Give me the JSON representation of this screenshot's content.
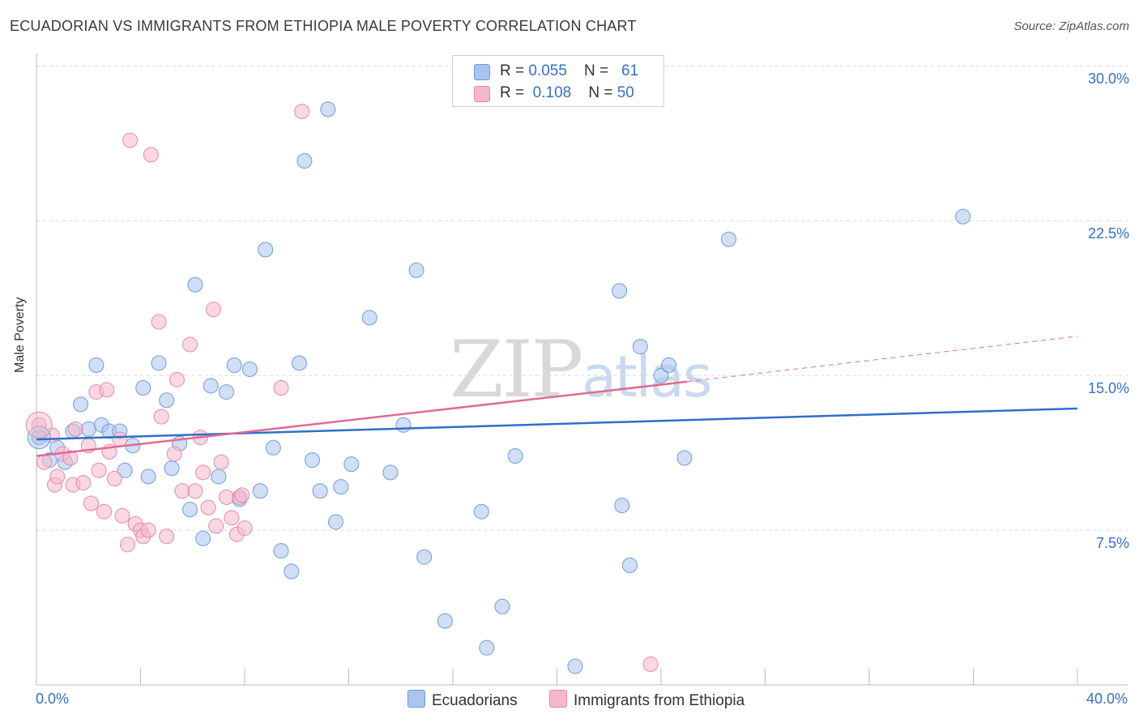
{
  "title": "ECUADORIAN VS IMMIGRANTS FROM ETHIOPIA MALE POVERTY CORRELATION CHART",
  "source": "Source: ZipAtlas.com",
  "watermark": {
    "zip": "ZIP",
    "atlas": "atlas"
  },
  "legend": {
    "rows": [
      {
        "r_label": "R = ",
        "r_value": "0.055",
        "n_label": "N = ",
        "n_value": "61",
        "color": "#a9c5ee"
      },
      {
        "r_label": "R = ",
        "r_value": "0.108",
        "n_label": "N = ",
        "n_value": "50",
        "color": "#f5b8cb"
      }
    ]
  },
  "bottom_legend": [
    {
      "label": "Ecuadorians",
      "color": "#a9c5ee"
    },
    {
      "label": "Immigrants from Ethiopia",
      "color": "#f5b8cb"
    }
  ],
  "chart_data": {
    "type": "scatter",
    "title": "ECUADORIAN VS IMMIGRANTS FROM ETHIOPIA MALE POVERTY CORRELATION CHART",
    "xlabel": "",
    "ylabel": "Male Poverty",
    "xlim": [
      0,
      40
    ],
    "ylim": [
      0,
      31
    ],
    "x_tick_labels": [
      "0.0%",
      "40.0%"
    ],
    "y_ticks": [
      7.5,
      15.0,
      22.5,
      30.0
    ],
    "y_tick_labels": [
      "7.5%",
      "15.0%",
      "22.5%",
      "30.0%"
    ],
    "grid": "horizontal dashed",
    "legend_placement": "top-center",
    "series": [
      {
        "name": "Ecuadorians",
        "color": "#a9c5ee",
        "stroke": "#6f9bd8",
        "trend": {
          "x": [
            0,
            40
          ],
          "y": [
            11.9,
            13.4
          ],
          "color": "#2f6fc9"
        },
        "points": [
          [
            0.1,
            12.0
          ],
          [
            0.5,
            10.9
          ],
          [
            0.8,
            11.5
          ],
          [
            1.1,
            10.8
          ],
          [
            1.4,
            12.3
          ],
          [
            1.7,
            13.6
          ],
          [
            2.0,
            12.4
          ],
          [
            2.3,
            15.5
          ],
          [
            2.5,
            12.6
          ],
          [
            2.8,
            12.3
          ],
          [
            3.2,
            12.3
          ],
          [
            3.4,
            10.4
          ],
          [
            3.7,
            11.6
          ],
          [
            4.1,
            14.4
          ],
          [
            4.3,
            10.1
          ],
          [
            4.7,
            15.6
          ],
          [
            5.0,
            13.8
          ],
          [
            5.2,
            10.5
          ],
          [
            5.5,
            11.7
          ],
          [
            5.9,
            8.5
          ],
          [
            6.1,
            19.4
          ],
          [
            6.4,
            7.1
          ],
          [
            6.7,
            14.5
          ],
          [
            7.0,
            10.1
          ],
          [
            7.3,
            14.2
          ],
          [
            7.6,
            15.5
          ],
          [
            7.8,
            9.0
          ],
          [
            8.2,
            15.3
          ],
          [
            8.6,
            9.4
          ],
          [
            8.8,
            21.1
          ],
          [
            9.1,
            11.5
          ],
          [
            9.4,
            6.5
          ],
          [
            9.8,
            5.5
          ],
          [
            10.1,
            15.6
          ],
          [
            10.3,
            25.4
          ],
          [
            10.6,
            10.9
          ],
          [
            10.9,
            9.4
          ],
          [
            11.2,
            27.9
          ],
          [
            11.5,
            7.9
          ],
          [
            11.7,
            9.6
          ],
          [
            12.1,
            10.7
          ],
          [
            12.8,
            17.8
          ],
          [
            13.6,
            10.3
          ],
          [
            14.1,
            12.6
          ],
          [
            14.6,
            20.1
          ],
          [
            14.9,
            6.2
          ],
          [
            15.7,
            3.1
          ],
          [
            17.1,
            8.4
          ],
          [
            17.3,
            1.8
          ],
          [
            17.9,
            3.8
          ],
          [
            18.4,
            11.1
          ],
          [
            20.7,
            0.9
          ],
          [
            22.4,
            19.1
          ],
          [
            22.5,
            8.7
          ],
          [
            22.8,
            5.8
          ],
          [
            23.2,
            16.4
          ],
          [
            24.0,
            15.0
          ],
          [
            24.3,
            15.5
          ],
          [
            24.9,
            11.0
          ],
          [
            26.6,
            21.6
          ],
          [
            35.6,
            22.7
          ]
        ]
      },
      {
        "name": "Immigrants from Ethiopia",
        "color": "#f5b8cb",
        "stroke": "#e58aa8",
        "trend": {
          "x": [
            0,
            25
          ],
          "y": [
            11.1,
            14.7
          ],
          "color": "#e06a93"
        },
        "trend_extension": {
          "x": [
            25,
            40
          ],
          "y": [
            14.7,
            16.9
          ],
          "color": "#e06a93",
          "dashed": true
        },
        "points": [
          [
            0.1,
            12.6
          ],
          [
            0.3,
            10.8
          ],
          [
            0.6,
            12.1
          ],
          [
            0.7,
            9.7
          ],
          [
            0.8,
            10.1
          ],
          [
            1.0,
            11.2
          ],
          [
            1.3,
            11.0
          ],
          [
            1.4,
            9.7
          ],
          [
            1.5,
            12.4
          ],
          [
            1.8,
            9.8
          ],
          [
            2.0,
            11.6
          ],
          [
            2.1,
            8.8
          ],
          [
            2.3,
            14.2
          ],
          [
            2.4,
            10.4
          ],
          [
            2.6,
            8.4
          ],
          [
            2.8,
            11.3
          ],
          [
            3.0,
            10.0
          ],
          [
            3.2,
            11.9
          ],
          [
            3.3,
            8.2
          ],
          [
            3.5,
            6.8
          ],
          [
            3.6,
            26.4
          ],
          [
            3.8,
            7.8
          ],
          [
            4.0,
            7.5
          ],
          [
            4.1,
            7.2
          ],
          [
            4.3,
            7.5
          ],
          [
            4.4,
            25.7
          ],
          [
            4.7,
            17.6
          ],
          [
            4.8,
            13.0
          ],
          [
            5.0,
            7.2
          ],
          [
            5.3,
            11.2
          ],
          [
            5.4,
            14.8
          ],
          [
            5.6,
            9.4
          ],
          [
            5.9,
            16.5
          ],
          [
            6.1,
            9.4
          ],
          [
            6.3,
            12.0
          ],
          [
            6.4,
            10.3
          ],
          [
            6.6,
            8.6
          ],
          [
            6.8,
            18.2
          ],
          [
            6.9,
            7.7
          ],
          [
            7.1,
            10.8
          ],
          [
            7.3,
            9.1
          ],
          [
            7.5,
            8.1
          ],
          [
            7.7,
            7.3
          ],
          [
            7.8,
            9.1
          ],
          [
            9.4,
            14.4
          ],
          [
            10.2,
            27.8
          ],
          [
            23.6,
            1.0
          ],
          [
            8.0,
            7.6
          ],
          [
            2.7,
            14.3
          ],
          [
            7.9,
            9.2
          ]
        ]
      }
    ]
  }
}
